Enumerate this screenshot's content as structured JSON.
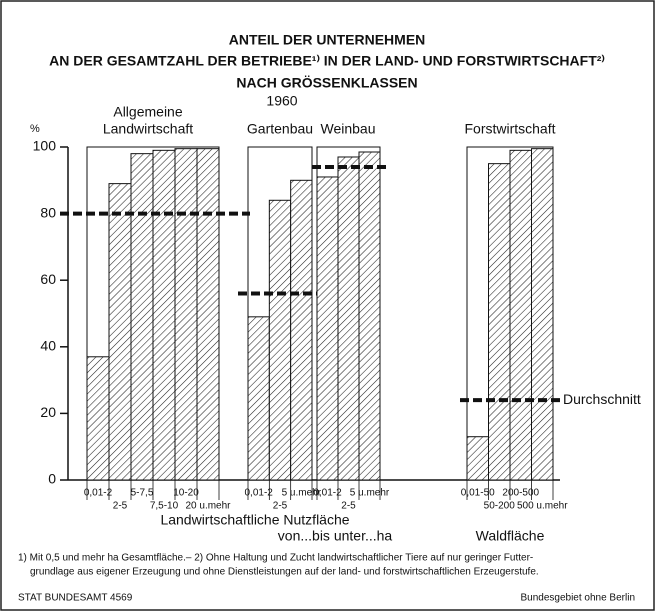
{
  "chart_data": {
    "type": "bar",
    "title": [
      "ANTEIL DER UNTERNEHMEN",
      "AN DER GESAMTZAHL DER BETRIEBE¹⁾ IN DER LAND- UND FORSTWIRTSCHAFT²⁾",
      "NACH GRÖSSENKLASSEN",
      "1960"
    ],
    "y_label": "%",
    "ylim": [
      0,
      100
    ],
    "yticks": [
      0,
      20,
      40,
      60,
      80,
      100
    ],
    "average_label": "Durchschnitt",
    "groups": [
      {
        "label": [
          "Allgemeine",
          "Landwirtschaft"
        ],
        "categories": [
          "0,01-2",
          "2-5",
          "5-7,5",
          "7,5-10",
          "10-20",
          "20 u.mehr"
        ],
        "values": [
          37,
          89,
          98,
          99,
          99.5,
          99.5
        ],
        "average": 80
      },
      {
        "label": [
          "Gartenbau"
        ],
        "categories": [
          "0,01-2",
          "2-5",
          "5 u.mehr"
        ],
        "values": [
          49,
          84,
          90
        ],
        "average": 56
      },
      {
        "label": [
          "Weinbau"
        ],
        "categories": [
          "0,01-2",
          "2-5",
          "5 u.mehr"
        ],
        "values": [
          91,
          97,
          98.5
        ],
        "average": 94
      },
      {
        "label": [
          "Forstwirtschaft"
        ],
        "categories": [
          "0,01-50",
          "50-200",
          "200-500",
          "500 u.mehr"
        ],
        "values": [
          13,
          95,
          99,
          99.5
        ],
        "average": 24
      }
    ],
    "x_labels": [
      "Landwirtschaftliche Nutzfläche",
      "von...bis unter...ha",
      "Waldfläche"
    ],
    "footnotes": [
      "1) Mit 0,5 und mehr ha Gesamtfläche.– 2) Ohne Haltung und Zucht landwirtschaftlicher Tiere auf nur geringer Futter-",
      "grundlage aus eigener Erzeugung und ohne Dienstleistungen auf der land- und forstwirtschaftlichen Erzeugerstufe."
    ],
    "source": "STAT BUNDESAMT 4569",
    "region": "Bundesgebiet ohne Berlin"
  }
}
